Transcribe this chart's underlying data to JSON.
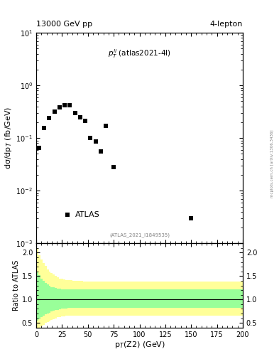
{
  "title_left": "13000 GeV pp",
  "title_right": "4-lepton",
  "atlas_label": "ATLAS",
  "watermark": "(ATLAS_2021_I1849535)",
  "xlabel": "p$_{T}$(Z2) (GeV)",
  "ylabel_main": "dσ/dp$_{T}$ (fb/GeV)",
  "ylabel_ratio": "Ratio to ATLAS",
  "side_text": "mcplots.cern.ch [arXiv:1306.3436]",
  "data_x": [
    2.5,
    7.5,
    12.5,
    17.5,
    22.5,
    27.5,
    32.5,
    37.5,
    42.5,
    47.5,
    52.5,
    57.5,
    62.5,
    67.5,
    75.0,
    150.0
  ],
  "data_y": [
    0.065,
    0.155,
    0.24,
    0.32,
    0.38,
    0.42,
    0.42,
    0.3,
    0.25,
    0.21,
    0.1,
    0.085,
    0.055,
    0.17,
    0.028,
    0.003
  ],
  "atlas_marker_x": 30,
  "atlas_marker_y": 0.0035,
  "xlim": [
    0,
    200
  ],
  "ylim_main": [
    0.001,
    10
  ],
  "ylim_ratio": [
    0.4,
    2.2
  ],
  "ratio_yticks": [
    0.5,
    1.0,
    1.5,
    2.0
  ],
  "yellow_band_edges": [
    0,
    2,
    4,
    6,
    8,
    10,
    12,
    14,
    16,
    18,
    20,
    22,
    24,
    26,
    28,
    30,
    35,
    40,
    45,
    50,
    55,
    60,
    65,
    70,
    200
  ],
  "yellow_upper": [
    2.1,
    1.95,
    1.85,
    1.78,
    1.72,
    1.65,
    1.6,
    1.56,
    1.53,
    1.5,
    1.47,
    1.45,
    1.44,
    1.43,
    1.42,
    1.41,
    1.4,
    1.4,
    1.39,
    1.38,
    1.38,
    1.38,
    1.38,
    1.38,
    1.38
  ],
  "yellow_lower": [
    0.35,
    0.38,
    0.42,
    0.46,
    0.5,
    0.52,
    0.54,
    0.57,
    0.58,
    0.6,
    0.62,
    0.63,
    0.64,
    0.64,
    0.65,
    0.65,
    0.65,
    0.65,
    0.65,
    0.65,
    0.65,
    0.65,
    0.65,
    0.65,
    0.65
  ],
  "green_band_edges": [
    0,
    2,
    4,
    6,
    8,
    10,
    12,
    14,
    16,
    18,
    20,
    22,
    24,
    26,
    28,
    30,
    35,
    40,
    45,
    50,
    55,
    60,
    65,
    70,
    200
  ],
  "green_upper": [
    1.6,
    1.52,
    1.45,
    1.4,
    1.36,
    1.32,
    1.29,
    1.27,
    1.26,
    1.25,
    1.24,
    1.23,
    1.22,
    1.22,
    1.22,
    1.22,
    1.22,
    1.22,
    1.22,
    1.22,
    1.22,
    1.22,
    1.22,
    1.22,
    1.22
  ],
  "green_lower": [
    0.55,
    0.58,
    0.62,
    0.65,
    0.68,
    0.7,
    0.72,
    0.74,
    0.76,
    0.77,
    0.78,
    0.79,
    0.8,
    0.8,
    0.81,
    0.82,
    0.82,
    0.82,
    0.82,
    0.82,
    0.82,
    0.82,
    0.82,
    0.82,
    0.82
  ],
  "marker_color": "black",
  "marker_size": 5,
  "yellow_color": "#ffff99",
  "green_color": "#99ff99",
  "ratio_line_y": 1.0
}
